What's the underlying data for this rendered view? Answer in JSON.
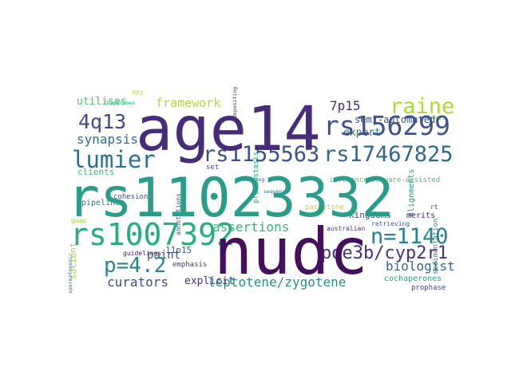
{
  "words": [
    {
      "text": "age14",
      "color": "#472c7a"
    },
    {
      "text": "rs11023332",
      "color": "#2a9d8a"
    },
    {
      "text": "nudc",
      "color": "#440f5c"
    },
    {
      "text": "rs1007392",
      "color": "#26ad81"
    },
    {
      "text": "rs156299",
      "color": "#3b528b"
    },
    {
      "text": "rs1155563",
      "color": "#3b518b"
    },
    {
      "text": "rs17467825",
      "color": "#30688e"
    },
    {
      "text": "raine",
      "color": "#addc30"
    },
    {
      "text": "lumier",
      "color": "#2c728e"
    },
    {
      "text": "4q13",
      "color": "#3e4a89"
    },
    {
      "text": "n=1140",
      "color": "#25858e"
    },
    {
      "text": "p=4.2",
      "color": "#24878e"
    },
    {
      "text": "pde3b/cyp2r1",
      "color": "#46327e"
    },
    {
      "text": "framework",
      "color": "#b5de2b"
    },
    {
      "text": "synapsis",
      "color": "#2d708e"
    },
    {
      "text": "assertions",
      "color": "#35b779"
    },
    {
      "text": "leptotene/zygotene",
      "color": "#21918c"
    },
    {
      "text": "biologist",
      "color": "#31678e"
    },
    {
      "text": "curators",
      "color": "#3e4c8a"
    },
    {
      "text": "explicit",
      "color": "#46307e"
    },
    {
      "text": "paint",
      "color": "#3d4d8a"
    },
    {
      "text": "7p15",
      "color": "#472a7a"
    },
    {
      "text": "expert",
      "color": "#2c718e"
    },
    {
      "text": "semi-automated",
      "color": "#3b528b"
    },
    {
      "text": "utilises",
      "color": "#4ac16d"
    },
    {
      "text": "clients",
      "color": "#3fbc73"
    },
    {
      "text": "cochaperones",
      "color": "#22a884"
    },
    {
      "text": "kingdoms",
      "color": "#414487"
    },
    {
      "text": "merits",
      "color": "#482576"
    },
    {
      "text": "salient",
      "color": "#9bd93c"
    },
    {
      "text": "11p15",
      "color": "#355f8d"
    },
    {
      "text": "pipeline",
      "color": "#2a788e"
    },
    {
      "text": "guidelines",
      "color": "#481467"
    },
    {
      "text": "annotations",
      "color": "#3b528b"
    },
    {
      "text": "emphasis",
      "color": "#443983"
    },
    {
      "text": "cohesion",
      "color": "#3e4989"
    },
    {
      "text": "prophase",
      "color": "#404588"
    },
    {
      "text": "sedimentation",
      "color": "#1f988b"
    },
    {
      "text": "alignments",
      "color": "#1fa187"
    },
    {
      "text": "inferences",
      "color": "#56c667"
    },
    {
      "text": "software-assisted",
      "color": "#4ec36b"
    },
    {
      "text": "pachytene",
      "color": "#c8e020"
    },
    {
      "text": "retrieving",
      "color": "#38588c"
    },
    {
      "text": "australian",
      "color": "#46317e"
    },
    {
      "text": "proteostasis",
      "color": "#26ad81"
    },
    {
      "text": "depositing",
      "color": "#482979"
    },
    {
      "text": "building",
      "color": "#3b528b"
    },
    {
      "text": "spermatogenic",
      "color": "#2d708e"
    },
    {
      "text": "chaperones",
      "color": "#1f9e89"
    },
    {
      "text": "sequence",
      "color": "#31688e"
    },
    {
      "text": "set",
      "color": "#3d4e8a"
    },
    {
      "text": "trees",
      "color": "#6ccd5a"
    },
    {
      "text": "gwas",
      "color": "#a0da39"
    },
    {
      "text": "npy",
      "color": "#addc30"
    },
    {
      "text": "rt",
      "color": "#472d7b"
    }
  ]
}
